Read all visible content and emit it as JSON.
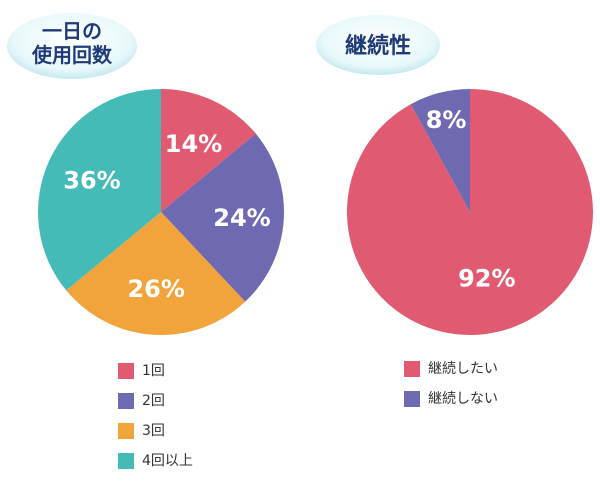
{
  "chart_data": [
    {
      "type": "pie",
      "title": "一日の\n使用回数",
      "categories": [
        "1回",
        "2回",
        "3回",
        "4回以上"
      ],
      "values": [
        14,
        24,
        26,
        36
      ],
      "labels": [
        "14%",
        "24%",
        "26%",
        "36%"
      ],
      "colors": [
        "#e05a72",
        "#6f69b1",
        "#f0a43b",
        "#45bbb8"
      ],
      "legend": "bottom"
    },
    {
      "type": "pie",
      "title": "継続性",
      "categories": [
        "継続したい",
        "継続しない"
      ],
      "values": [
        92,
        8
      ],
      "labels": [
        "92%",
        "8%"
      ],
      "colors": [
        "#e05a72",
        "#6f69b1"
      ],
      "legend": "bottom"
    }
  ],
  "style": {
    "badge_fill": "#d7f2f6",
    "badge_text": "#1f3a78",
    "slice_label_color": "#ffffff"
  }
}
